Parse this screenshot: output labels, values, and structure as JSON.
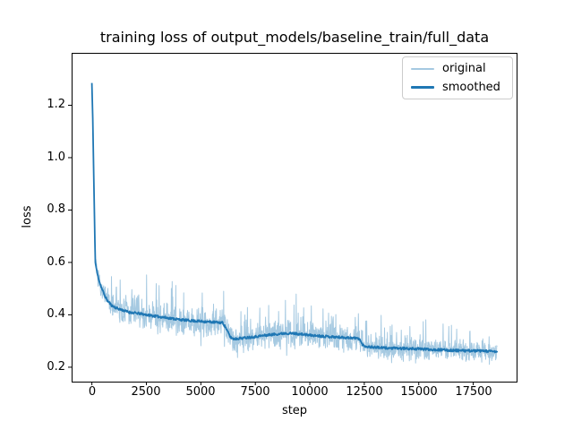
{
  "figure": {
    "background": "#ffffff"
  },
  "chart_data": {
    "type": "line",
    "title": "training loss of output_models/baseline_train/full_data",
    "xlabel": "step",
    "ylabel": "loss",
    "xlim": [
      -930,
      19530
    ],
    "ylim": [
      0.145,
      1.4
    ],
    "xticks": [
      0,
      2500,
      5000,
      7500,
      10000,
      12500,
      15000,
      17500
    ],
    "yticks": [
      0.2,
      0.4,
      0.6,
      0.8,
      1.0,
      1.2
    ],
    "x_tick_labels": [
      "0",
      "2500",
      "5000",
      "7500",
      "10000",
      "12500",
      "15000",
      "17500"
    ],
    "y_tick_labels": [
      "0.2",
      "0.4",
      "0.6",
      "0.8",
      "1.0",
      "1.2"
    ],
    "grid": false,
    "axes_color": "#000000",
    "legend": {
      "position": "upper right",
      "entries": [
        {
          "label": "original",
          "color": "#a5c9e1"
        },
        {
          "label": "smoothed",
          "color": "#1f77b4"
        }
      ]
    },
    "series": [
      {
        "name": "original",
        "render": "noisy-line",
        "color": "#a5c9e1",
        "linewidth": 1,
        "x_start": 0,
        "x_end": 18600,
        "x_step": 12,
        "seed": 7,
        "spike_probability": 0.055,
        "value_min": 0.205,
        "value_max": 1.345,
        "noise_halfwidth_keypoints": [
          [
            0,
            0.025
          ],
          [
            150,
            0.035
          ],
          [
            400,
            0.045
          ],
          [
            700,
            0.055
          ],
          [
            1000,
            0.062
          ],
          [
            1500,
            0.07
          ],
          [
            2500,
            0.072
          ],
          [
            3500,
            0.07
          ],
          [
            4500,
            0.066
          ],
          [
            5500,
            0.062
          ],
          [
            6100,
            0.058
          ],
          [
            6400,
            0.052
          ],
          [
            7000,
            0.058
          ],
          [
            8000,
            0.062
          ],
          [
            9000,
            0.06
          ],
          [
            10000,
            0.058
          ],
          [
            11000,
            0.055
          ],
          [
            12200,
            0.053
          ],
          [
            12600,
            0.048
          ],
          [
            14000,
            0.05
          ],
          [
            16000,
            0.05
          ],
          [
            18600,
            0.047
          ]
        ]
      },
      {
        "name": "smoothed",
        "render": "line",
        "color": "#1f77b4",
        "linewidth": 1.8,
        "keypoints": [
          [
            0,
            1.285
          ],
          [
            40,
            1.15
          ],
          [
            80,
            0.95
          ],
          [
            120,
            0.76
          ],
          [
            160,
            0.6
          ],
          [
            250,
            0.555
          ],
          [
            370,
            0.52
          ],
          [
            470,
            0.497
          ],
          [
            580,
            0.475
          ],
          [
            700,
            0.455
          ],
          [
            920,
            0.435
          ],
          [
            1150,
            0.425
          ],
          [
            1330,
            0.42
          ],
          [
            1700,
            0.41
          ],
          [
            2150,
            0.405
          ],
          [
            2890,
            0.395
          ],
          [
            3500,
            0.388
          ],
          [
            4200,
            0.38
          ],
          [
            5000,
            0.375
          ],
          [
            5600,
            0.372
          ],
          [
            6000,
            0.37
          ],
          [
            6150,
            0.35
          ],
          [
            6350,
            0.315
          ],
          [
            6500,
            0.308
          ],
          [
            7000,
            0.312
          ],
          [
            7600,
            0.318
          ],
          [
            8300,
            0.325
          ],
          [
            8900,
            0.33
          ],
          [
            9400,
            0.328
          ],
          [
            10000,
            0.322
          ],
          [
            10700,
            0.318
          ],
          [
            11400,
            0.314
          ],
          [
            12000,
            0.312
          ],
          [
            12280,
            0.309
          ],
          [
            12380,
            0.29
          ],
          [
            12500,
            0.281
          ],
          [
            12700,
            0.278
          ],
          [
            13300,
            0.274
          ],
          [
            14000,
            0.272
          ],
          [
            15000,
            0.27
          ],
          [
            16000,
            0.266
          ],
          [
            17000,
            0.263
          ],
          [
            18000,
            0.262
          ],
          [
            18600,
            0.259
          ]
        ]
      }
    ]
  }
}
